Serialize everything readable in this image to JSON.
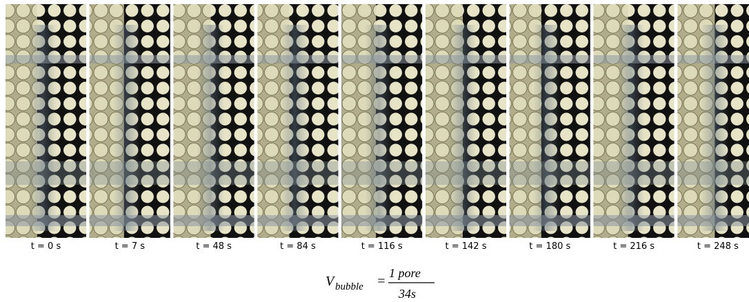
{
  "panels": [
    {
      "label": "t = 0 s"
    },
    {
      "label": "t = 7 s"
    },
    {
      "label": "t = 48 s"
    },
    {
      "label": "t = 84 s"
    },
    {
      "label": "t = 116 s"
    },
    {
      "label": "t = 142 s"
    },
    {
      "label": "t = 180 s"
    },
    {
      "label": "t = 216 s"
    },
    {
      "label": "t = 248 s"
    }
  ],
  "equation": {
    "symbol": "V",
    "subscript": "bubble",
    "equals": "=",
    "numerator": "1 pore",
    "denominator": "34s"
  }
}
